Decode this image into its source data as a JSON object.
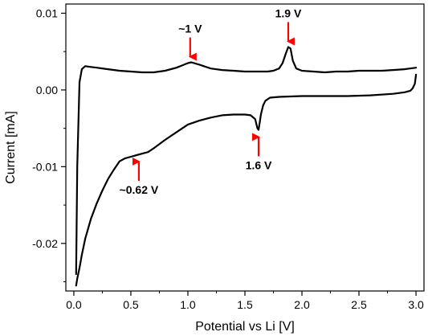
{
  "chart_data": {
    "type": "line",
    "title": "",
    "xlabel": "Potential vs Li [V]",
    "ylabel": "Current [mA]",
    "xlim": [
      -0.07,
      3.07
    ],
    "ylim": [
      -0.0262,
      0.0112
    ],
    "x_ticks": [
      0.0,
      0.5,
      1.0,
      1.5,
      2.0,
      2.5,
      3.0
    ],
    "x_tick_labels": [
      "0.0",
      "0.5",
      "1.0",
      "1.5",
      "2.0",
      "2.5",
      "3.0"
    ],
    "y_ticks": [
      0.01,
      0.0,
      -0.01,
      -0.02
    ],
    "y_tick_labels": [
      "0.01",
      "0.00",
      "-0.01",
      "-0.02"
    ],
    "grid": false,
    "legend": "none",
    "line_color": "#000000",
    "arrow_color": "#ff0000",
    "series": [
      {
        "x": [
          0.02,
          0.03,
          0.05,
          0.07,
          0.1,
          0.15,
          0.2,
          0.3,
          0.4,
          0.5,
          0.6,
          0.7,
          0.8,
          0.9,
          0.95,
          1.0,
          1.03,
          1.1,
          1.2,
          1.3,
          1.4,
          1.5,
          1.6,
          1.7,
          1.75,
          1.8,
          1.83,
          1.86,
          1.88,
          1.9,
          1.92,
          1.95,
          2.0,
          2.1,
          2.2,
          2.3,
          2.4,
          2.5,
          2.6,
          2.7,
          2.8,
          2.9,
          3.0
        ],
        "y": [
          -0.024,
          -0.01,
          0.001,
          0.0027,
          0.0031,
          0.003,
          0.0029,
          0.0027,
          0.0025,
          0.0024,
          0.0023,
          0.0023,
          0.0025,
          0.0029,
          0.0032,
          0.0035,
          0.0036,
          0.0033,
          0.0028,
          0.0026,
          0.0025,
          0.0024,
          0.0024,
          0.0024,
          0.0025,
          0.0028,
          0.0035,
          0.0048,
          0.0056,
          0.0054,
          0.0038,
          0.0028,
          0.0025,
          0.0024,
          0.0023,
          0.0024,
          0.0024,
          0.0025,
          0.0025,
          0.0025,
          0.0026,
          0.0027,
          0.0029
        ]
      },
      {
        "x": [
          3.0,
          2.99,
          2.97,
          2.95,
          2.9,
          2.8,
          2.6,
          2.4,
          2.2,
          2.0,
          1.8,
          1.72,
          1.68,
          1.66,
          1.64,
          1.63,
          1.62,
          1.61,
          1.59,
          1.55,
          1.5,
          1.4,
          1.3,
          1.2,
          1.1,
          1.0,
          0.9,
          0.8,
          0.7,
          0.65,
          0.6,
          0.55,
          0.5,
          0.45,
          0.4,
          0.35,
          0.3,
          0.25,
          0.2,
          0.15,
          0.1,
          0.07,
          0.05,
          0.03,
          0.02
        ],
        "y": [
          0.002,
          0.0008,
          0.0002,
          -0.0001,
          -0.0003,
          -0.0005,
          -0.0007,
          -0.0008,
          -0.0008,
          -0.0008,
          -0.0009,
          -0.001,
          -0.0014,
          -0.002,
          -0.0032,
          -0.0042,
          -0.0052,
          -0.005,
          -0.0038,
          -0.0033,
          -0.0032,
          -0.0032,
          -0.0033,
          -0.0036,
          -0.004,
          -0.0045,
          -0.0055,
          -0.0065,
          -0.0076,
          -0.0081,
          -0.0083,
          -0.0085,
          -0.0087,
          -0.0089,
          -0.0093,
          -0.0104,
          -0.0116,
          -0.0131,
          -0.0148,
          -0.0168,
          -0.0194,
          -0.0215,
          -0.0232,
          -0.0246,
          -0.0255
        ]
      }
    ],
    "annotations": [
      {
        "text": "~1 V",
        "x": 1.02,
        "y": 0.0037,
        "direction": "down"
      },
      {
        "text": "1.9 V",
        "x": 1.88,
        "y": 0.0057,
        "direction": "down"
      },
      {
        "text": "1.6 V",
        "x": 1.62,
        "y": -0.0055,
        "direction": "up"
      },
      {
        "text": "~0.62 V",
        "x": 0.57,
        "y": -0.0087,
        "direction": "up"
      }
    ]
  }
}
